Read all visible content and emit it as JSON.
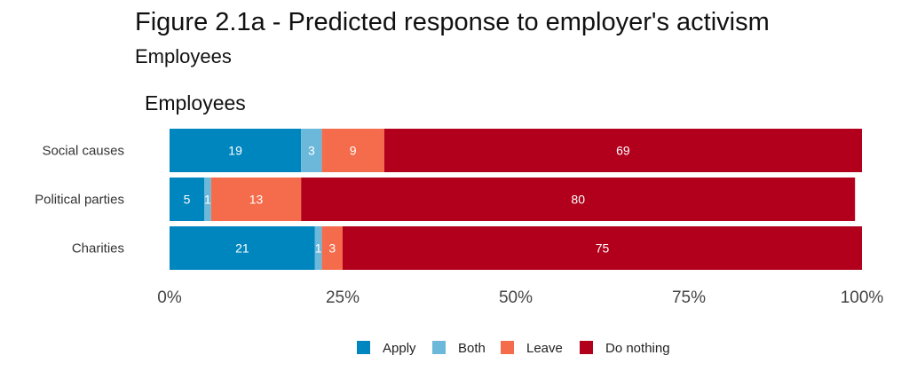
{
  "figure": {
    "title": "Figure 2.1a - Predicted response to employer's activism",
    "subtitle": "Employees"
  },
  "chart_data": {
    "type": "bar",
    "orientation": "horizontal",
    "stacked": true,
    "title": "Employees",
    "categories": [
      "Social causes",
      "Political parties",
      "Charities"
    ],
    "series": [
      {
        "name": "Apply",
        "color": "#0086BF",
        "values": [
          19,
          5,
          21
        ]
      },
      {
        "name": "Both",
        "color": "#6CB8DA",
        "values": [
          3,
          1,
          1
        ]
      },
      {
        "name": "Leave",
        "color": "#F46C4B",
        "values": [
          9,
          13,
          3
        ]
      },
      {
        "name": "Do nothing",
        "color": "#B2001C",
        "values": [
          69,
          80,
          75
        ]
      }
    ],
    "xlim": [
      0,
      100
    ],
    "xticks": [
      "0%",
      "25%",
      "50%",
      "75%",
      "100%"
    ],
    "grid": false,
    "legend_position": "bottom"
  }
}
